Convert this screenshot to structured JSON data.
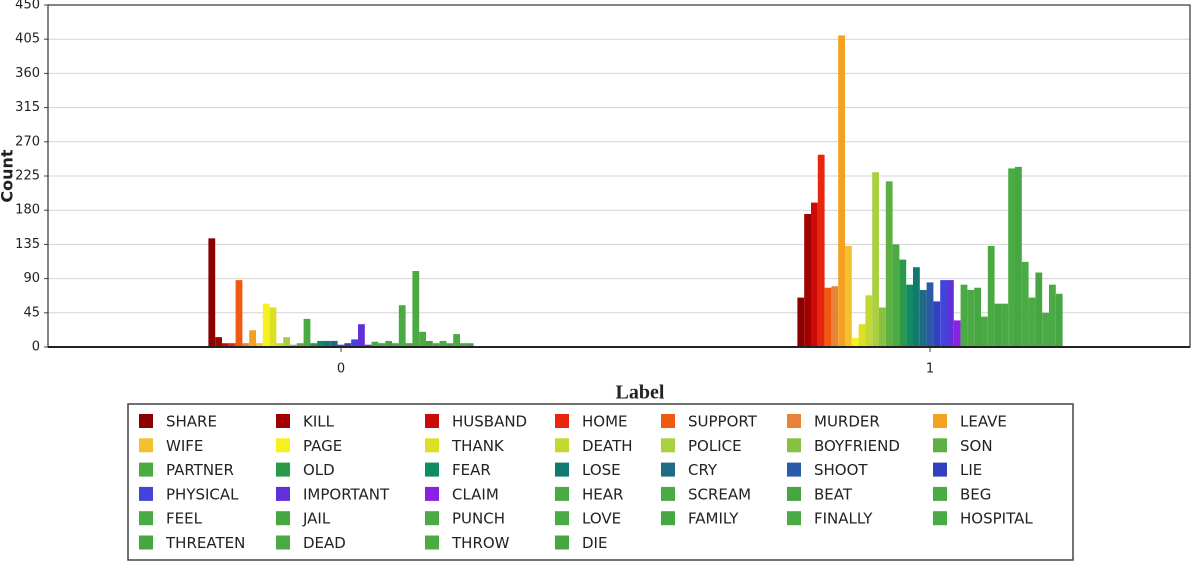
{
  "chart_data": {
    "type": "bar",
    "x_label": "Label",
    "y_label": "Count",
    "categories": [
      "0",
      "1"
    ],
    "ylim": [
      0,
      450
    ],
    "yticks": [
      0,
      45,
      90,
      135,
      180,
      225,
      270,
      315,
      360,
      405,
      450
    ],
    "grid": true,
    "series": [
      {
        "name": "SHARE",
        "color": "#8b0000",
        "values": [
          143,
          65
        ]
      },
      {
        "name": "KILL",
        "color": "#a30000",
        "values": [
          13,
          175
        ]
      },
      {
        "name": "HUSBAND",
        "color": "#cc0a0a",
        "values": [
          5,
          190
        ]
      },
      {
        "name": "HOME",
        "color": "#e8260e",
        "values": [
          5,
          253
        ]
      },
      {
        "name": "SUPPORT",
        "color": "#f05a10",
        "values": [
          88,
          78
        ]
      },
      {
        "name": "MURDER",
        "color": "#e8843a",
        "values": [
          5,
          80
        ]
      },
      {
        "name": "LEAVE",
        "color": "#f5a020",
        "values": [
          22,
          410
        ]
      },
      {
        "name": "WIFE",
        "color": "#f5c030",
        "values": [
          5,
          133
        ]
      },
      {
        "name": "PAGE",
        "color": "#f5f020",
        "values": [
          57,
          12
        ]
      },
      {
        "name": "THANK",
        "color": "#dce025",
        "values": [
          52,
          30
        ]
      },
      {
        "name": "DEATH",
        "color": "#c4d832",
        "values": [
          5,
          68
        ]
      },
      {
        "name": "POLICE",
        "color": "#a8d040",
        "values": [
          13,
          230
        ]
      },
      {
        "name": "BOYFRIEND",
        "color": "#88c040",
        "values": [
          3,
          52
        ]
      },
      {
        "name": "SON",
        "color": "#5cb044",
        "values": [
          5,
          218
        ]
      },
      {
        "name": "PARTNER",
        "color": "#4aaa44",
        "values": [
          37,
          135
        ]
      },
      {
        "name": "OLD",
        "color": "#2a9a4a",
        "values": [
          5,
          115
        ]
      },
      {
        "name": "FEAR",
        "color": "#108a60",
        "values": [
          8,
          82
        ]
      },
      {
        "name": "LOSE",
        "color": "#107a70",
        "values": [
          8,
          105
        ]
      },
      {
        "name": "CRY",
        "color": "#206a88",
        "values": [
          8,
          75
        ]
      },
      {
        "name": "SHOOT",
        "color": "#2a5aa8",
        "values": [
          3,
          85
        ]
      },
      {
        "name": "LIE",
        "color": "#3040c0",
        "values": [
          5,
          60
        ]
      },
      {
        "name": "PHYSICAL",
        "color": "#4444dc",
        "values": [
          10,
          88
        ]
      },
      {
        "name": "IMPORTANT",
        "color": "#6030d8",
        "values": [
          30,
          88
        ]
      },
      {
        "name": "CLAIM",
        "color": "#8a20e0",
        "values": [
          3,
          35
        ]
      },
      {
        "name": "HEAR",
        "color": "#4aaa44",
        "values": [
          7,
          82
        ]
      },
      {
        "name": "SCREAM",
        "color": "#4aaa44",
        "values": [
          5,
          75
        ]
      },
      {
        "name": "BEAT",
        "color": "#46a642",
        "values": [
          8,
          78
        ]
      },
      {
        "name": "BEG",
        "color": "#4aaa44",
        "values": [
          5,
          40
        ]
      },
      {
        "name": "FEEL",
        "color": "#4aaa44",
        "values": [
          55,
          133
        ]
      },
      {
        "name": "JAIL",
        "color": "#46a642",
        "values": [
          5,
          57
        ]
      },
      {
        "name": "PUNCH",
        "color": "#4aaa44",
        "values": [
          100,
          57
        ]
      },
      {
        "name": "LOVE",
        "color": "#4aaa44",
        "values": [
          20,
          235
        ]
      },
      {
        "name": "FAMILY",
        "color": "#46a642",
        "values": [
          8,
          237
        ]
      },
      {
        "name": "FINALLY",
        "color": "#4aaa44",
        "values": [
          5,
          112
        ]
      },
      {
        "name": "HOSPITAL",
        "color": "#4aaa44",
        "values": [
          8,
          65
        ]
      },
      {
        "name": "THREATEN",
        "color": "#46a642",
        "values": [
          5,
          98
        ]
      },
      {
        "name": "DEAD",
        "color": "#4aaa44",
        "values": [
          17,
          45
        ]
      },
      {
        "name": "THROW",
        "color": "#4aaa44",
        "values": [
          5,
          82
        ]
      },
      {
        "name": "DIE",
        "color": "#46a642",
        "values": [
          5,
          70
        ]
      }
    ]
  }
}
